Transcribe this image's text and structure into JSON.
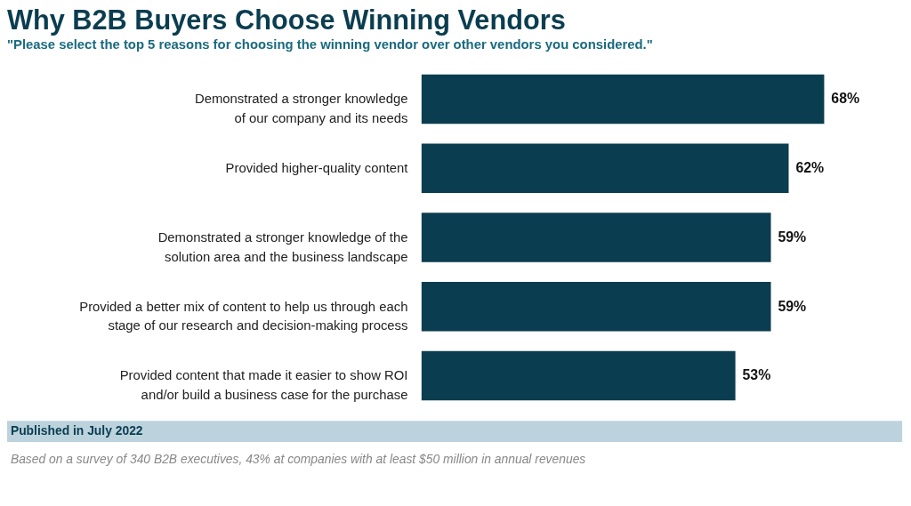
{
  "chart_data": {
    "type": "bar",
    "orientation": "horizontal",
    "title": "Why B2B Buyers Choose Winning Vendors",
    "subtitle": "\"Please select the top 5 reasons for choosing the winning vendor over other vendors you considered.\"",
    "categories": [
      "Demonstrated a stronger knowledge\nof our company and its needs",
      "Provided higher-quality content",
      "Demonstrated a stronger knowledge of the\nsolution area and the business landscape",
      "Provided a better mix of content to help us through each\nstage of our research and decision-making process",
      "Provided content that made it easier to show ROI\nand/or build a business case for the purchase"
    ],
    "values": [
      68,
      62,
      59,
      59,
      53
    ],
    "value_labels": [
      "68%",
      "62%",
      "59%",
      "59%",
      "53%"
    ],
    "color": "#0a3d4f",
    "tick_labels": "y",
    "annotations": [
      "Published in July 2022",
      "Based on a survey of 340 B2B executives, 43% at companies with at least $50 million in annual revenues"
    ]
  }
}
